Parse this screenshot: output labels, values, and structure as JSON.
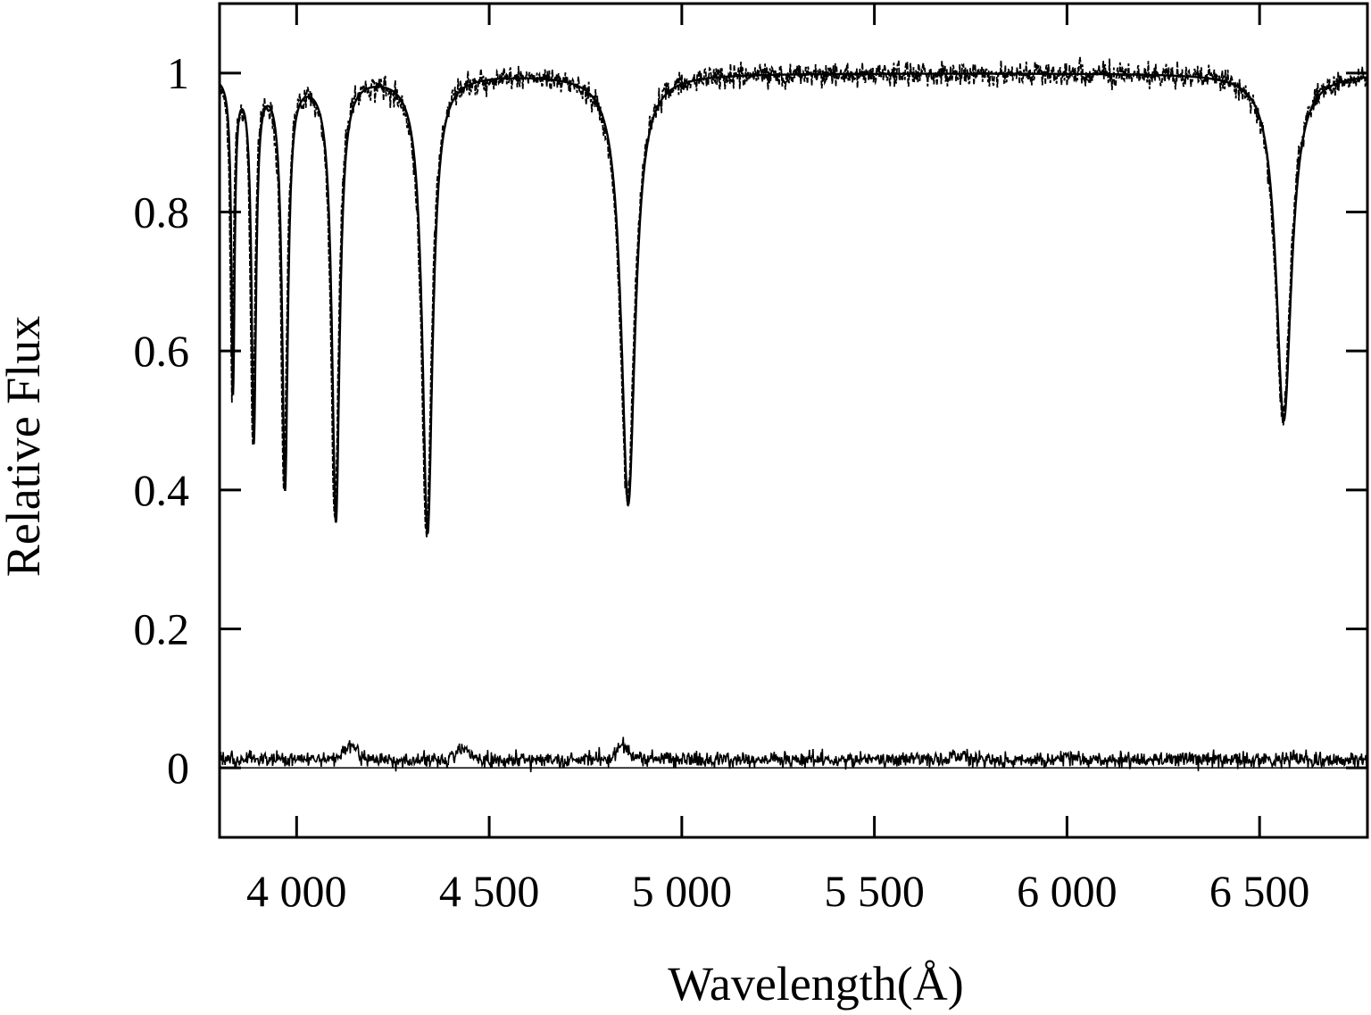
{
  "chart_data": {
    "type": "line",
    "title": "",
    "xlabel": "Wavelength(Å)",
    "ylabel": "Relative Flux",
    "xlim": [
      3800,
      6780
    ],
    "ylim": [
      -0.1,
      1.1
    ],
    "xticks": [
      4000,
      4500,
      5000,
      5500,
      6000,
      6500
    ],
    "xtick_labels": [
      "4 000",
      "4 500",
      "5 000",
      "5 500",
      "6 000",
      "6 500"
    ],
    "yticks": [
      0,
      0.2,
      0.4,
      0.6,
      0.8,
      1
    ],
    "ytick_labels": [
      "0",
      "0.2",
      "0.4",
      "0.6",
      "0.8",
      "1"
    ],
    "grid": false,
    "legend": "none",
    "continuum": 1.0,
    "absorption_lines": [
      {
        "wavelength": 3835,
        "depth": 0.45,
        "width": 5
      },
      {
        "wavelength": 3889,
        "depth": 0.52,
        "width": 7
      },
      {
        "wavelength": 3970,
        "depth": 0.59,
        "width": 9
      },
      {
        "wavelength": 4102,
        "depth": 0.64,
        "width": 12
      },
      {
        "wavelength": 4340,
        "depth": 0.66,
        "width": 16
      },
      {
        "wavelength": 4861,
        "depth": 0.62,
        "width": 22
      },
      {
        "wavelength": 6563,
        "depth": 0.5,
        "width": 24
      }
    ],
    "series": [
      {
        "style": "solid-model",
        "x_range": [
          3800,
          6780
        ]
      },
      {
        "style": "dashed-observed",
        "x_range": [
          3800,
          6780
        ],
        "noise": 0.012
      },
      {
        "style": "residual",
        "x_range": [
          3800,
          6780
        ],
        "baseline": 0.012,
        "noise": 0.008,
        "bumps": [
          {
            "wavelength": 4140,
            "height": 0.02
          },
          {
            "wavelength": 4430,
            "height": 0.015
          },
          {
            "wavelength": 4850,
            "height": 0.02
          },
          {
            "wavelength": 5720,
            "height": 0.008
          }
        ]
      }
    ],
    "colors": {
      "line": "#000000",
      "axis": "#000000",
      "background": "#ffffff"
    }
  }
}
